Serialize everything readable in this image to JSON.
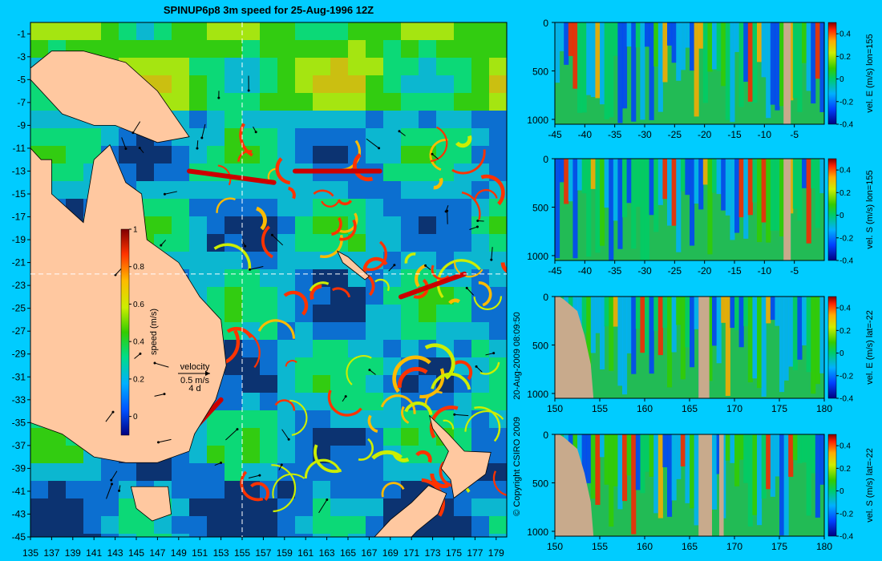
{
  "chart_data": [
    {
      "type": "heatmap",
      "title": "SPINUP6p8 3m speed for 25-Aug-1996 12Z",
      "xlabel": "",
      "ylabel": "",
      "x_ticks": [
        135,
        137,
        139,
        141,
        143,
        145,
        147,
        149,
        151,
        153,
        155,
        157,
        159,
        161,
        163,
        165,
        167,
        169,
        171,
        173,
        175,
        177,
        179
      ],
      "y_ticks": [
        -1,
        -3,
        -5,
        -7,
        -9,
        -11,
        -13,
        -15,
        -17,
        -19,
        -21,
        -23,
        -25,
        -27,
        -29,
        -31,
        -33,
        -35,
        -37,
        -39,
        -41,
        -43,
        -45
      ],
      "xlim": [
        135,
        180
      ],
      "ylim": [
        -45,
        0
      ],
      "section_lines": {
        "lon": 155,
        "lat": -22
      },
      "colorbar": {
        "label": "speed (m/s)",
        "range": [
          -0.1,
          1
        ],
        "ticks": [
          0,
          0.2,
          0.4,
          0.6,
          0.8,
          1
        ]
      },
      "velocity_key": {
        "title": "velocity",
        "speed": "0.5 m/s",
        "duration": "4 d"
      }
    },
    {
      "type": "heatmap",
      "xlim": [
        -45,
        0
      ],
      "ylim": [
        1050,
        0
      ],
      "x_ticks": [
        -45,
        -40,
        -35,
        -30,
        -25,
        -20,
        -15,
        -10,
        -5
      ],
      "y_ticks": [
        0,
        500,
        1000
      ],
      "colorbar": {
        "label": "vel. E (m/s) lon=155",
        "range": [
          -0.4,
          0.5
        ],
        "ticks": [
          0.4,
          0.2,
          0,
          -0.2,
          -0.4
        ]
      }
    },
    {
      "type": "heatmap",
      "xlim": [
        -45,
        0
      ],
      "ylim": [
        1050,
        0
      ],
      "x_ticks": [
        -45,
        -40,
        -35,
        -30,
        -25,
        -20,
        -15,
        -10,
        -5
      ],
      "y_ticks": [
        0,
        500,
        1000
      ],
      "colorbar": {
        "label": "vel. S (m/s) lon=155",
        "range": [
          -0.4,
          0.5
        ],
        "ticks": [
          0.4,
          0.2,
          0,
          -0.2,
          -0.4
        ]
      }
    },
    {
      "type": "heatmap",
      "xlim": [
        150,
        180
      ],
      "ylim": [
        1050,
        0
      ],
      "x_ticks": [
        150,
        155,
        160,
        165,
        170,
        175,
        180
      ],
      "y_ticks": [
        0,
        500,
        1000
      ],
      "colorbar": {
        "label": "vel. E (m/s) lat=-22",
        "range": [
          -0.4,
          0.5
        ],
        "ticks": [
          0.4,
          0.2,
          0,
          -0.2,
          -0.4
        ]
      }
    },
    {
      "type": "heatmap",
      "xlim": [
        150,
        180
      ],
      "ylim": [
        1050,
        0
      ],
      "x_ticks": [
        150,
        155,
        160,
        165,
        170,
        175,
        180
      ],
      "y_ticks": [
        0,
        500,
        1000
      ],
      "colorbar": {
        "label": "vel. S (m/s) lat=-22",
        "range": [
          -0.4,
          0.5
        ],
        "ticks": [
          0.4,
          0.2,
          0,
          -0.2,
          -0.4
        ]
      }
    }
  ],
  "annotations": {
    "timestamp": "20-Aug-2009 08:09:50",
    "copyright": "© Copyright CSIRO 2009"
  },
  "colors": {
    "background": "#00ccff",
    "land": "#ffc8a0",
    "bathymetry": "#c8aa8c"
  }
}
